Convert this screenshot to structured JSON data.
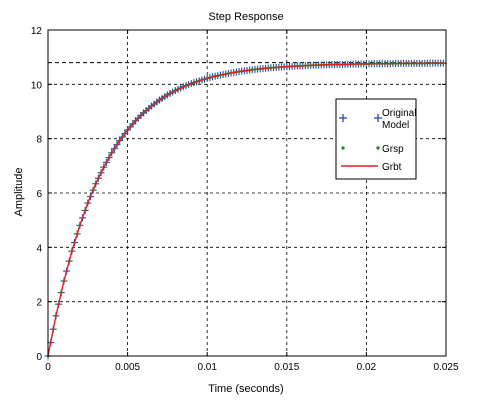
{
  "chart_data": {
    "type": "line",
    "title": "Step Response",
    "xlabel": "Time (seconds)",
    "ylabel": "Amplitude",
    "xlim": [
      0,
      0.025
    ],
    "ylim": [
      0,
      12
    ],
    "xticks": [
      0,
      0.005,
      0.01,
      0.015,
      0.02,
      0.025
    ],
    "xtick_labels": [
      "0",
      "0.005",
      "0.01",
      "0.015",
      "0.02",
      "0.025"
    ],
    "yticks": [
      0,
      2,
      4,
      6,
      8,
      10,
      12
    ],
    "ytick_labels": [
      "0",
      "2",
      "4",
      "6",
      "8",
      "10",
      "12"
    ],
    "grid": true,
    "legend_position": "right",
    "reference_line": {
      "y": 10.8,
      "style": "dashed",
      "color": "#000000"
    },
    "series": [
      {
        "name": "Original Model",
        "marker": "+",
        "color": "#1f4fa8",
        "x": [
          0,
          0.0005,
          0.001,
          0.0015,
          0.002,
          0.0025,
          0.003,
          0.0035,
          0.004,
          0.0045,
          0.005,
          0.0055,
          0.006,
          0.0065,
          0.007,
          0.0075,
          0.008,
          0.0085,
          0.009,
          0.0095,
          0.01,
          0.0105,
          0.011,
          0.0115,
          0.012,
          0.0125,
          0.013,
          0.0135,
          0.014,
          0.0145,
          0.015,
          0.0155,
          0.016,
          0.0165,
          0.017,
          0.0175,
          0.018,
          0.0185,
          0.019,
          0.0195,
          0.02,
          0.0205,
          0.021,
          0.0215,
          0.022,
          0.0225,
          0.023,
          0.0235,
          0.024,
          0.0245,
          0.025
        ],
        "y": [
          0,
          1.48,
          2.76,
          3.86,
          4.81,
          5.63,
          6.34,
          6.95,
          7.48,
          7.93,
          8.32,
          8.66,
          8.95,
          9.2,
          9.42,
          9.61,
          9.77,
          9.91,
          10.03,
          10.13,
          10.22,
          10.3,
          10.36,
          10.42,
          10.47,
          10.51,
          10.55,
          10.58,
          10.61,
          10.63,
          10.65,
          10.67,
          10.68,
          10.7,
          10.71,
          10.72,
          10.73,
          10.73,
          10.74,
          10.75,
          10.75,
          10.76,
          10.76,
          10.76,
          10.77,
          10.77,
          10.77,
          10.77,
          10.78,
          10.78,
          10.78
        ]
      },
      {
        "name": "Grsp",
        "marker": "dot",
        "color": "#2e8b2e",
        "x": [
          0,
          0.0005,
          0.001,
          0.0015,
          0.002,
          0.0025,
          0.003,
          0.0035,
          0.004,
          0.0045,
          0.005,
          0.0055,
          0.006,
          0.0065,
          0.007,
          0.0075,
          0.008,
          0.0085,
          0.009,
          0.0095,
          0.01,
          0.0105,
          0.011,
          0.0115,
          0.012,
          0.0125,
          0.013,
          0.0135,
          0.014,
          0.0145,
          0.015,
          0.0155,
          0.016,
          0.0165,
          0.017,
          0.0175,
          0.018,
          0.0185,
          0.019,
          0.0195,
          0.02,
          0.0205,
          0.021,
          0.0215,
          0.022,
          0.0225,
          0.023,
          0.0235,
          0.024,
          0.0245,
          0.025
        ],
        "y": [
          0,
          1.48,
          2.76,
          3.86,
          4.81,
          5.63,
          6.34,
          6.95,
          7.48,
          7.93,
          8.32,
          8.66,
          8.95,
          9.2,
          9.42,
          9.61,
          9.77,
          9.91,
          10.03,
          10.13,
          10.22,
          10.3,
          10.36,
          10.42,
          10.47,
          10.51,
          10.55,
          10.58,
          10.61,
          10.63,
          10.65,
          10.67,
          10.68,
          10.7,
          10.71,
          10.72,
          10.73,
          10.73,
          10.74,
          10.75,
          10.75,
          10.76,
          10.76,
          10.76,
          10.77,
          10.77,
          10.77,
          10.77,
          10.78,
          10.78,
          10.78
        ]
      },
      {
        "name": "Grbt",
        "marker": "line",
        "color": "#e02020",
        "x": [
          0,
          0.0005,
          0.001,
          0.0015,
          0.002,
          0.0025,
          0.003,
          0.0035,
          0.004,
          0.0045,
          0.005,
          0.0055,
          0.006,
          0.0065,
          0.007,
          0.0075,
          0.008,
          0.0085,
          0.009,
          0.0095,
          0.01,
          0.0105,
          0.011,
          0.0115,
          0.012,
          0.0125,
          0.013,
          0.0135,
          0.014,
          0.0145,
          0.015,
          0.0155,
          0.016,
          0.0165,
          0.017,
          0.0175,
          0.018,
          0.0185,
          0.019,
          0.0195,
          0.02,
          0.0205,
          0.021,
          0.0215,
          0.022,
          0.0225,
          0.023,
          0.0235,
          0.024,
          0.0245,
          0.025
        ],
        "y": [
          0,
          1.48,
          2.76,
          3.86,
          4.81,
          5.63,
          6.34,
          6.95,
          7.48,
          7.93,
          8.32,
          8.66,
          8.95,
          9.2,
          9.42,
          9.61,
          9.77,
          9.91,
          10.03,
          10.13,
          10.22,
          10.3,
          10.36,
          10.42,
          10.47,
          10.51,
          10.55,
          10.58,
          10.61,
          10.63,
          10.65,
          10.67,
          10.68,
          10.7,
          10.71,
          10.72,
          10.73,
          10.73,
          10.74,
          10.75,
          10.75,
          10.76,
          10.76,
          10.76,
          10.77,
          10.77,
          10.77,
          10.77,
          10.78,
          10.78,
          10.78
        ]
      }
    ]
  }
}
